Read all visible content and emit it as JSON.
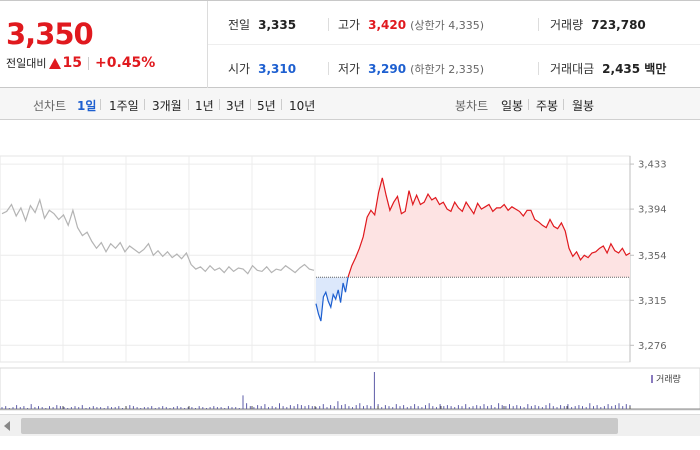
{
  "quote": {
    "price": "3,350",
    "change_label": "전일대비",
    "change_value": "15",
    "change_pct": "+0.45%",
    "prev_close_label": "전일",
    "prev_close": "3,335",
    "high_label": "고가",
    "high": "3,420",
    "upper_limit": "(상한가 4,335)",
    "volume_label": "거래량",
    "volume": "723,780",
    "open_label": "시가",
    "open": "3,310",
    "low_label": "저가",
    "low": "3,290",
    "lower_limit": "(하한가 2,335)",
    "amount_label": "거래대금",
    "amount": "2,435 백만"
  },
  "period_bar": {
    "line_label": "선차트",
    "line_options": [
      "1일",
      "1주일",
      "3개월",
      "1년",
      "3년",
      "5년",
      "10년"
    ],
    "active_index": 0,
    "candle_label": "봉차트",
    "candle_options": [
      "일봉",
      "주봉",
      "월봉"
    ]
  },
  "colors": {
    "up": "#e0191e",
    "down": "#1d5fd0",
    "prev": "#b4b4b4"
  },
  "chart_data": {
    "type": "line",
    "ylim": [
      3265,
      3440
    ],
    "yticks": [
      3433,
      3394,
      3354,
      3315,
      3276
    ],
    "ytick_labels": [
      "3,433",
      "3,394",
      "3,354",
      "3,315",
      "3,276"
    ],
    "baseline": 3335,
    "series": [
      {
        "values": [
          3390,
          3392,
          3398,
          3388,
          3395,
          3384,
          3397,
          3391,
          3402,
          3386,
          3393,
          3390,
          3385,
          3389,
          3380,
          3393,
          3378,
          3371,
          3374,
          3366,
          3360,
          3365,
          3357,
          3364,
          3360,
          3365,
          3357,
          3362,
          3359,
          3356,
          3359,
          3364,
          3354,
          3358,
          3353,
          3357,
          3352,
          3355,
          3351,
          3356,
          3346,
          3342,
          3344,
          3340,
          3345,
          3341,
          3343,
          3339,
          3344,
          3340,
          3343,
          3342,
          3338,
          3345,
          3341,
          3340,
          3344,
          3339,
          3342,
          3341,
          3345,
          3342,
          3339,
          3343,
          3346,
          3342,
          3341
        ]
      },
      {
        "values": [
          3312,
          3303,
          3297,
          3318,
          3322,
          3314,
          3309,
          3320,
          3316,
          3324,
          3313,
          3330,
          3322,
          3335
        ]
      },
      {
        "values": [
          3335,
          3345,
          3352,
          3360,
          3370,
          3387,
          3393,
          3389,
          3408,
          3421,
          3406,
          3393,
          3400,
          3405,
          3390,
          3392,
          3410,
          3398,
          3406,
          3398,
          3400,
          3407,
          3402,
          3404,
          3398,
          3400,
          3394,
          3392,
          3400,
          3395,
          3392,
          3400,
          3395,
          3390,
          3399,
          3394,
          3396,
          3398,
          3392,
          3395,
          3395,
          3398,
          3393,
          3396,
          3394,
          3392,
          3388,
          3393,
          3393,
          3385,
          3383,
          3380,
          3378,
          3385,
          3379,
          3377,
          3382,
          3375,
          3360,
          3353,
          3357,
          3350,
          3354,
          3352,
          3356,
          3357,
          3360,
          3362,
          3356,
          3364,
          3358,
          3356,
          3360,
          3354,
          3356
        ]
      }
    ],
    "volume_label": "거래량",
    "volume": [
      2,
      3,
      1,
      2,
      4,
      2,
      3,
      1,
      5,
      2,
      3,
      2,
      1,
      3,
      2,
      4,
      3,
      2,
      1,
      2,
      3,
      2,
      4,
      1,
      2,
      3,
      2,
      2,
      1,
      3,
      2,
      2,
      3,
      1,
      2,
      4,
      3,
      2,
      1,
      2,
      2,
      3,
      1,
      2,
      3,
      2,
      1,
      2,
      3,
      2,
      1,
      2,
      2,
      1,
      3,
      2,
      1,
      2,
      3,
      2,
      2,
      1,
      3,
      2,
      2,
      1,
      14,
      6,
      3,
      2,
      4,
      3,
      5,
      2,
      3,
      2,
      6,
      3,
      2,
      4,
      3,
      5,
      4,
      3,
      4,
      3,
      2,
      3,
      5,
      2,
      4,
      3,
      8,
      4,
      5,
      3,
      2,
      4,
      6,
      3,
      4,
      3,
      38,
      5,
      2,
      4,
      3,
      2,
      5,
      3,
      4,
      2,
      3,
      5,
      3,
      2,
      4,
      6,
      3,
      2,
      5,
      3,
      4,
      3,
      2,
      4,
      3,
      5,
      2,
      3,
      4,
      3,
      5,
      3,
      4,
      2,
      6,
      4,
      3,
      5,
      3,
      4,
      3,
      2,
      5,
      3,
      4,
      3,
      2,
      4,
      6,
      3,
      2,
      4,
      3,
      5,
      2,
      3,
      4,
      3,
      2,
      6,
      3,
      4,
      2,
      3,
      5,
      3,
      4,
      6,
      3,
      5,
      4
    ]
  }
}
